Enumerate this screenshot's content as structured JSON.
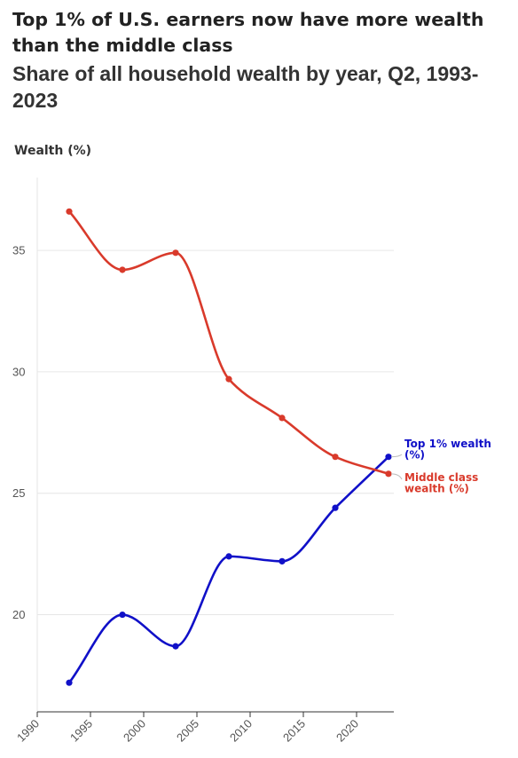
{
  "title": "Top 1% of U.S. earners now have more wealth than the middle class",
  "subtitle": "Share of all household wealth by year, Q2, 1993-2023",
  "chart_data": {
    "type": "line",
    "title": "Top 1% of U.S. earners now have more wealth than the middle class",
    "subtitle": "Share of all household wealth by year, Q2, 1993-2023",
    "xlabel": "",
    "ylabel": "Wealth (%)",
    "x": [
      1993,
      1998,
      2003,
      2008,
      2013,
      2018,
      2023
    ],
    "xlim": [
      1990,
      2023.5
    ],
    "ylim": [
      16.0,
      38.0
    ],
    "x_ticks": [
      "1990",
      "1995",
      "2000",
      "2005",
      "2010",
      "2015",
      "2020"
    ],
    "y_ticks": [
      "20",
      "25",
      "30",
      "35"
    ],
    "grid": "horizontal",
    "legend": "direct labels at line ends",
    "series": [
      {
        "name": "Top 1% wealth (%)",
        "label_lines": [
          "Top 1% wealth",
          "(%)"
        ],
        "color": "#1010c8",
        "values": [
          17.2,
          20.0,
          18.7,
          22.4,
          22.2,
          24.4,
          26.5
        ]
      },
      {
        "name": "Middle class wealth (%)",
        "label_lines": [
          "Middle class",
          "wealth (%)"
        ],
        "color": "#d93a2b",
        "values": [
          36.6,
          34.2,
          34.9,
          29.7,
          28.1,
          26.5,
          25.8
        ]
      }
    ]
  }
}
